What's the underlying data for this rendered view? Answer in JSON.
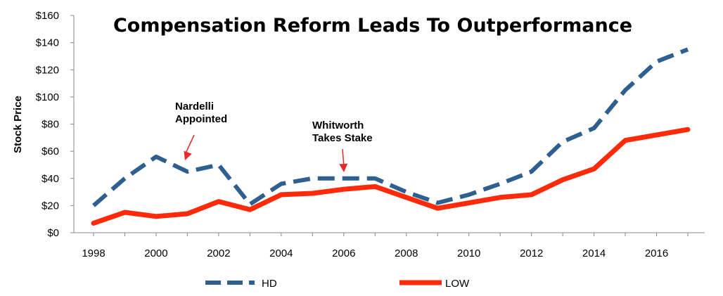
{
  "chart_data": {
    "type": "line",
    "title": "Compensation Reform Leads To Outperformance",
    "ylabel": "Stock Price",
    "xlabel": "",
    "ylim": [
      0,
      160
    ],
    "yticks": [
      "$0",
      "$20",
      "$40",
      "$60",
      "$80",
      "$100",
      "$120",
      "$140",
      "$160"
    ],
    "xticks": [
      "1998",
      "2000",
      "2002",
      "2004",
      "2006",
      "2008",
      "2010",
      "2012",
      "2014",
      "2016"
    ],
    "x": [
      1998,
      1999,
      2000,
      2001,
      2002,
      2003,
      2004,
      2005,
      2006,
      2007,
      2008,
      2009,
      2010,
      2011,
      2012,
      2013,
      2014,
      2015,
      2016,
      2017
    ],
    "series": [
      {
        "name": "HD",
        "color": "#2f5f8f",
        "style": "dashed",
        "values": [
          20,
          40,
          56,
          45,
          50,
          21,
          36,
          40,
          40,
          40,
          30,
          22,
          28,
          36,
          45,
          67,
          77,
          105,
          126,
          135
        ]
      },
      {
        "name": "LOW",
        "color": "#ff2a0a",
        "style": "solid",
        "values": [
          7,
          15,
          12,
          14,
          23,
          17,
          28,
          29,
          32,
          34,
          26,
          18,
          22,
          26,
          28,
          39,
          47,
          68,
          72,
          76
        ]
      }
    ],
    "annotations": [
      {
        "lines": [
          "Nardelli",
          "Appointed"
        ],
        "x": 2001,
        "y": 53
      },
      {
        "lines": [
          "Whitworth",
          "Takes Stake"
        ],
        "x": 2006,
        "y": 43
      }
    ],
    "grid": false,
    "legend_position": "bottom"
  }
}
